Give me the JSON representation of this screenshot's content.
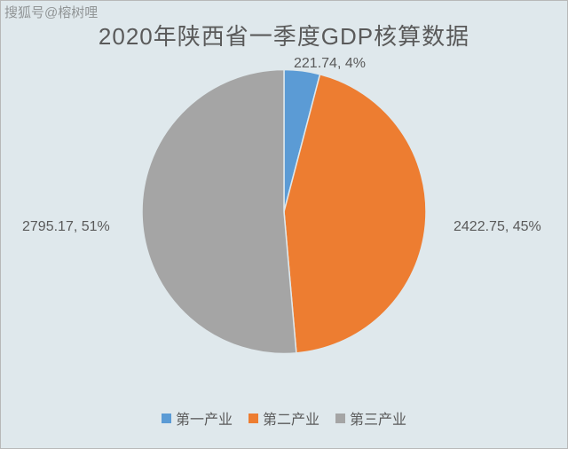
{
  "watermark": "搜狐号@榕树哩",
  "title": "2020年陕西省一季度GDP核算数据",
  "chart": {
    "type": "pie",
    "background_color": "#dfe8ec",
    "radius": 160,
    "title_fontsize": 26,
    "title_color": "#5a5a5a",
    "label_fontsize": 16,
    "label_color": "#5a5a5a",
    "slices": [
      {
        "name": "第一产业",
        "value": 221.74,
        "percent": 4,
        "color": "#5b9bd5",
        "label": "221.74, 4%"
      },
      {
        "name": "第二产业",
        "value": 2422.75,
        "percent": 45,
        "color": "#ed7d31",
        "label": "2422.75, 45%"
      },
      {
        "name": "第三产业",
        "value": 2795.17,
        "percent": 51,
        "color": "#a5a5a5",
        "label": "2795.17, 51%"
      }
    ],
    "legend_position": "bottom"
  }
}
